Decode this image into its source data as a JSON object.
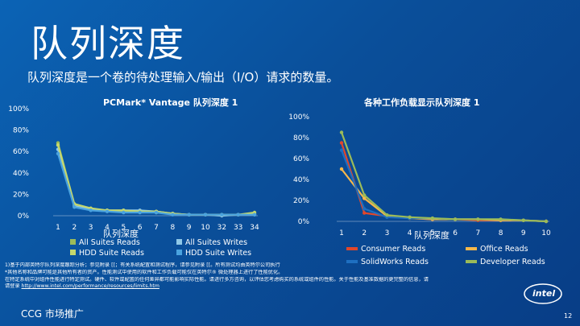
{
  "slide": {
    "title": "队列深度",
    "subtitle": "队列深度是一个卷的待处理输入/输出（I/O）请求的数量。",
    "footer_text": "CCG 市场推广",
    "page_number": "12",
    "logo_text": "intel"
  },
  "footnotes": {
    "line1": "1)基于内部英特尔队列深度跟踪分析；参见附录 [[；有关系统配置和测试程序，请参见附录 [[。所有测试均由英特尔公司执行",
    "line2": "*其他名称和品牌可能是其他所有者的资产。性能测试中使用的软件和工作负载可能仅在英特尔® 微处理器上进行了性能优化。",
    "line3": "在特定系统中对组件性能进行特定测试。硬件、软件或配置的任何差异都可能影响实际性能。请进行多方咨询，以评估您考虑购买的系统或组件的性能。关于性能及基准数据的更完整的信息，请",
    "line4_prefix": "请登录",
    "line4_link": "http://www.intel.com/performance/resources/limits.htm"
  },
  "chart_data": [
    {
      "type": "line",
      "title": "PCMark* Vantage 队列深度 1",
      "xlabel": "队列深度",
      "categories": [
        "1",
        "2",
        "3",
        "4",
        "5",
        "6",
        "7",
        "8",
        "9",
        "10",
        "32",
        "33",
        "34"
      ],
      "y_ticks": [
        "0%",
        "20%",
        "40%",
        "60%",
        "80%",
        "100%"
      ],
      "ylim": [
        0,
        100
      ],
      "series": [
        {
          "name": "All Suites Reads",
          "color": "#9bbb59",
          "values": [
            68,
            10,
            6,
            5,
            4,
            4,
            3,
            2,
            1,
            1,
            1,
            1,
            2
          ]
        },
        {
          "name": "All Suites Writes",
          "color": "#8fc8e8",
          "values": [
            62,
            9,
            6,
            5,
            5,
            5,
            4,
            2,
            1,
            1,
            0,
            1,
            1
          ]
        },
        {
          "name": "HDD Suite Reads",
          "color": "#c5d86d",
          "values": [
            66,
            11,
            7,
            5,
            5,
            4,
            4,
            2,
            1,
            1,
            1,
            1,
            3
          ]
        },
        {
          "name": "HDD Suite Writes",
          "color": "#4aa3df",
          "values": [
            58,
            8,
            5,
            4,
            3,
            3,
            3,
            1,
            1,
            1,
            1,
            1,
            1
          ]
        }
      ]
    },
    {
      "type": "line",
      "title": "各种工作负载显示队列深度 1",
      "xlabel": "队列深度",
      "categories": [
        "1",
        "2",
        "3",
        "4",
        "5",
        "6",
        "7",
        "8",
        "9",
        "10"
      ],
      "y_ticks": [
        "0%",
        "20%",
        "40%",
        "60%",
        "80%",
        "100%"
      ],
      "ylim": [
        0,
        100
      ],
      "series": [
        {
          "name": "Consumer Reads",
          "color": "#e0472b",
          "values": [
            75,
            8,
            5,
            3,
            2,
            2,
            1,
            1,
            1,
            0
          ]
        },
        {
          "name": "Office Reads",
          "color": "#f7b84b",
          "values": [
            50,
            22,
            5,
            3,
            2,
            2,
            2,
            1,
            1,
            0
          ]
        },
        {
          "name": "SolidWorks Reads",
          "color": "#1e6fc1",
          "values": [
            68,
            12,
            4,
            3,
            3,
            2,
            2,
            2,
            1,
            0
          ]
        },
        {
          "name": "Developer Reads",
          "color": "#9bbb59",
          "values": [
            85,
            25,
            6,
            4,
            3,
            2,
            2,
            2,
            1,
            0
          ]
        }
      ]
    }
  ]
}
